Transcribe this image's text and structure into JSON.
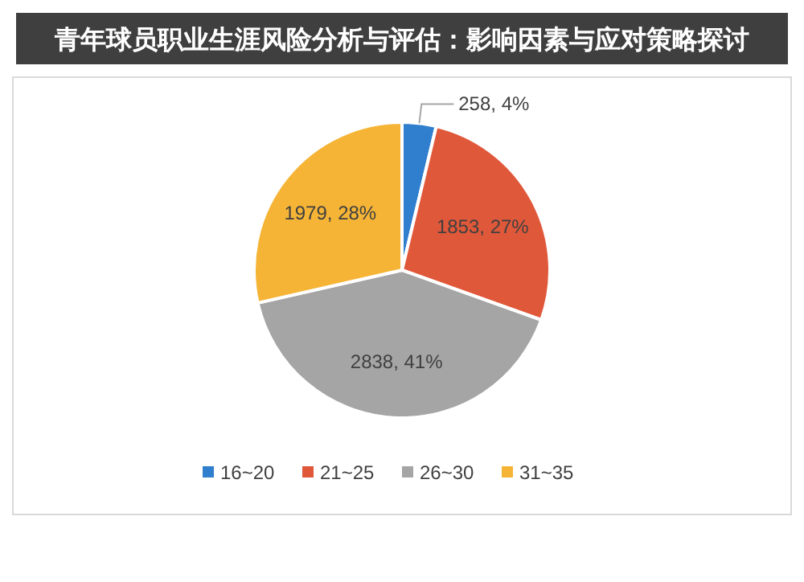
{
  "chart_data": {
    "type": "pie",
    "title": "青年球员职业生涯风险分析与评估：影响因素与应对策略探讨",
    "categories": [
      "16~20",
      "21~25",
      "26~30",
      "31~35"
    ],
    "values": [
      258,
      1853,
      2838,
      1979
    ],
    "value_labels": [
      "258, 4%",
      "1853, 27%",
      "2838, 41%",
      "1979, 28%"
    ],
    "colors": [
      "#2f7fce",
      "#e0583a",
      "#a5a5a5",
      "#f5b436"
    ],
    "legend": "bottom"
  }
}
